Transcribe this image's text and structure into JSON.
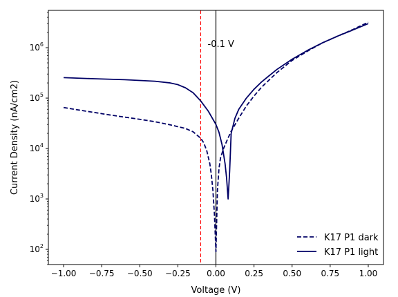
{
  "chart_data": {
    "type": "line",
    "title": "",
    "xlabel": "Voltage (V)",
    "ylabel": "Current Density (nA/cm2)",
    "xlim": [
      -1.1,
      1.1
    ],
    "ylim": [
      50,
      5500000
    ],
    "yscale": "log",
    "grid": false,
    "legend_position": "lower-right",
    "x_ticks": [
      -1.0,
      -0.75,
      -0.5,
      -0.25,
      0.0,
      0.25,
      0.5,
      0.75,
      1.0
    ],
    "x_tick_labels": [
      "−1.00",
      "−0.75",
      "−0.50",
      "−0.25",
      "0.00",
      "0.25",
      "0.50",
      "0.75",
      "1.00"
    ],
    "y_ticks": [
      100,
      1000,
      10000,
      100000,
      1000000
    ],
    "y_tick_labels": [
      {
        "base": "10",
        "exp": "2"
      },
      {
        "base": "10",
        "exp": "3"
      },
      {
        "base": "10",
        "exp": "4"
      },
      {
        "base": "10",
        "exp": "5"
      },
      {
        "base": "10",
        "exp": "6"
      }
    ],
    "series": [
      {
        "name": "K17 P1 dark",
        "color": "#000066",
        "linestyle": "dashed",
        "points": [
          [
            -1.0,
            65000
          ],
          [
            -0.9,
            58000
          ],
          [
            -0.8,
            52000
          ],
          [
            -0.7,
            46500
          ],
          [
            -0.6,
            42000
          ],
          [
            -0.5,
            38000
          ],
          [
            -0.4,
            34000
          ],
          [
            -0.3,
            29500
          ],
          [
            -0.2,
            25000
          ],
          [
            -0.15,
            21500
          ],
          [
            -0.1,
            16000
          ],
          [
            -0.08,
            13000
          ],
          [
            -0.06,
            9000
          ],
          [
            -0.04,
            5000
          ],
          [
            -0.03,
            3000
          ],
          [
            -0.02,
            1500
          ],
          [
            -0.01,
            500
          ],
          [
            0.0,
            90
          ],
          [
            0.01,
            1500
          ],
          [
            0.02,
            4000
          ],
          [
            0.03,
            6500
          ],
          [
            0.05,
            10000
          ],
          [
            0.075,
            15000
          ],
          [
            0.1,
            22000
          ],
          [
            0.15,
            40000
          ],
          [
            0.2,
            70000
          ],
          [
            0.25,
            110000
          ],
          [
            0.3,
            165000
          ],
          [
            0.4,
            320000
          ],
          [
            0.5,
            560000
          ],
          [
            0.6,
            850000
          ],
          [
            0.7,
            1250000
          ],
          [
            0.8,
            1700000
          ],
          [
            0.9,
            2300000
          ],
          [
            1.0,
            3200000
          ]
        ]
      },
      {
        "name": "K17 P1 light",
        "color": "#000066",
        "linestyle": "solid",
        "points": [
          [
            -1.0,
            255000
          ],
          [
            -0.8,
            242000
          ],
          [
            -0.6,
            232000
          ],
          [
            -0.5,
            224000
          ],
          [
            -0.4,
            216000
          ],
          [
            -0.3,
            200000
          ],
          [
            -0.25,
            185000
          ],
          [
            -0.2,
            160000
          ],
          [
            -0.15,
            128000
          ],
          [
            -0.1,
            88000
          ],
          [
            -0.05,
            55000
          ],
          [
            0.0,
            30000
          ],
          [
            0.02,
            21000
          ],
          [
            0.04,
            12000
          ],
          [
            0.06,
            5000
          ],
          [
            0.07,
            2600
          ],
          [
            0.08,
            1000
          ],
          [
            0.09,
            3500
          ],
          [
            0.1,
            20000
          ],
          [
            0.125,
            40000
          ],
          [
            0.15,
            60000
          ],
          [
            0.2,
            100000
          ],
          [
            0.25,
            150000
          ],
          [
            0.3,
            210000
          ],
          [
            0.4,
            370000
          ],
          [
            0.5,
            590000
          ],
          [
            0.6,
            880000
          ],
          [
            0.7,
            1250000
          ],
          [
            0.8,
            1700000
          ],
          [
            0.9,
            2250000
          ],
          [
            1.0,
            3000000
          ]
        ]
      }
    ],
    "annotations": [
      {
        "text": "-0.1 V",
        "x": 0.0,
        "y": 1000000
      }
    ],
    "reference_lines": [
      {
        "orientation": "vertical",
        "x": -0.1,
        "color": "#ff0000",
        "linestyle": "dashed"
      },
      {
        "orientation": "vertical",
        "x": 0.0,
        "color": "#000000",
        "linestyle": "solid"
      }
    ]
  }
}
